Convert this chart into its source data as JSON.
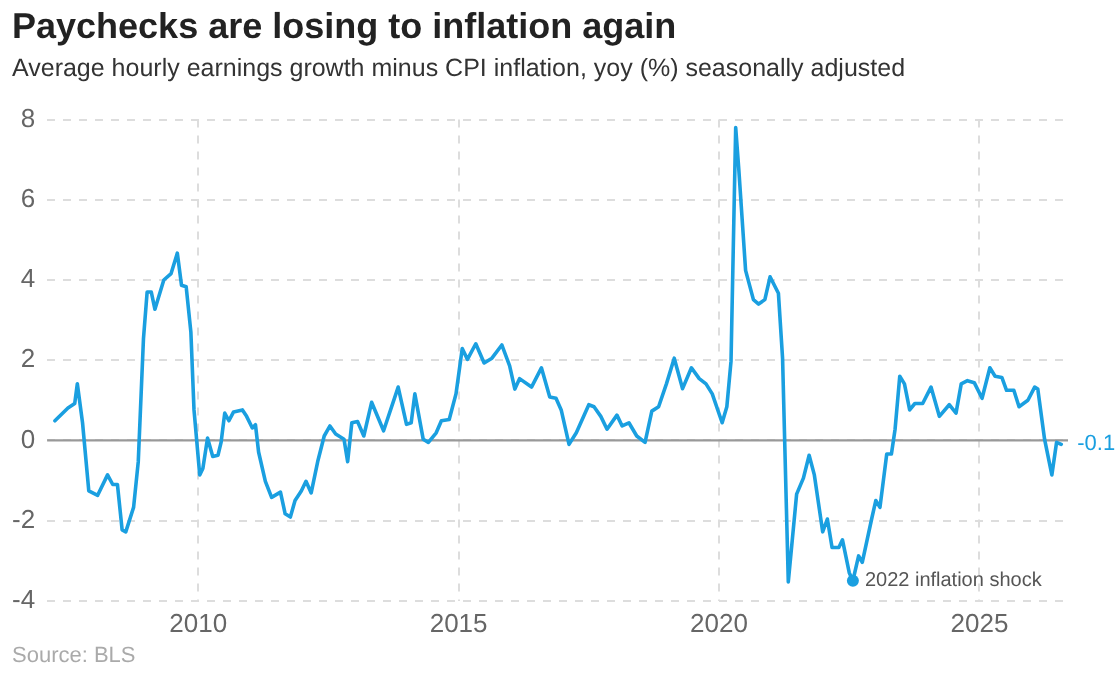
{
  "chart_data": {
    "type": "line",
    "title": "Paychecks are losing to inflation again",
    "subtitle": "Average hourly earnings growth minus CPI inflation, yoy (%) seasonally adjusted",
    "xlim": [
      2007.1,
      2026.7
    ],
    "xticks": [
      2010,
      2015,
      2020,
      2025
    ],
    "ylim": [
      -4,
      8
    ],
    "yticks": [
      -4,
      -2,
      0,
      2,
      4,
      6,
      8
    ],
    "grid": true,
    "legend": false,
    "marker": "none",
    "line_style": "solid",
    "ref_lines": [
      {
        "axis": "y",
        "value": 0,
        "color": "#999999"
      }
    ],
    "annotations": [
      {
        "text": "2022 inflation shock",
        "x": 2022.57,
        "y": -3.5
      },
      {
        "text": "-0.1",
        "x": 2026.57,
        "y": -0.1
      },
      "Source: BLS"
    ],
    "series": [
      {
        "color": "#1a9fe0",
        "x": [
          2007.25,
          2007.5,
          2007.63,
          2007.68,
          2007.78,
          2007.9,
          2008.07,
          2008.26,
          2008.36,
          2008.45,
          2008.54,
          2008.61,
          2008.76,
          2008.85,
          2008.95,
          2009.02,
          2009.1,
          2009.17,
          2009.34,
          2009.48,
          2009.6,
          2009.68,
          2009.77,
          2009.86,
          2009.92,
          2010.03,
          2010.09,
          2010.18,
          2010.28,
          2010.38,
          2010.44,
          2010.51,
          2010.59,
          2010.68,
          2010.85,
          2010.93,
          2011.04,
          2011.1,
          2011.16,
          2011.29,
          2011.41,
          2011.58,
          2011.67,
          2011.77,
          2011.86,
          2011.98,
          2012.07,
          2012.17,
          2012.3,
          2012.42,
          2012.53,
          2012.64,
          2012.8,
          2012.87,
          2012.95,
          2013.06,
          2013.18,
          2013.33,
          2013.56,
          2013.84,
          2014.0,
          2014.09,
          2014.16,
          2014.32,
          2014.42,
          2014.57,
          2014.67,
          2014.82,
          2014.95,
          2015.07,
          2015.17,
          2015.33,
          2015.49,
          2015.64,
          2015.83,
          2015.98,
          2016.08,
          2016.17,
          2016.4,
          2016.59,
          2016.75,
          2016.87,
          2016.97,
          2017.12,
          2017.26,
          2017.5,
          2017.6,
          2017.73,
          2017.85,
          2018.04,
          2018.14,
          2018.27,
          2018.42,
          2018.58,
          2018.71,
          2018.84,
          2018.99,
          2019.14,
          2019.3,
          2019.47,
          2019.62,
          2019.75,
          2019.87,
          2020.06,
          2020.15,
          2020.23,
          2020.32,
          2020.38,
          2020.51,
          2020.66,
          2020.76,
          2020.88,
          2020.98,
          2021.14,
          2021.22,
          2021.33,
          2021.49,
          2021.62,
          2021.73,
          2021.83,
          2021.99,
          2022.08,
          2022.17,
          2022.3,
          2022.37,
          2022.5,
          2022.57,
          2022.68,
          2022.75,
          2022.93,
          2023.01,
          2023.09,
          2023.22,
          2023.31,
          2023.38,
          2023.47,
          2023.56,
          2023.66,
          2023.76,
          2023.91,
          2024.07,
          2024.23,
          2024.42,
          2024.55,
          2024.65,
          2024.77,
          2024.9,
          2025.05,
          2025.2,
          2025.3,
          2025.43,
          2025.52,
          2025.66,
          2025.76,
          2025.93,
          2026.06,
          2026.12,
          2026.25,
          2026.39,
          2026.48,
          2026.57
        ],
        "values": [
          0.49,
          0.81,
          0.92,
          1.41,
          0.44,
          -1.26,
          -1.37,
          -0.86,
          -1.1,
          -1.1,
          -2.23,
          -2.28,
          -1.67,
          -0.53,
          2.54,
          3.7,
          3.7,
          3.27,
          4.0,
          4.16,
          4.67,
          3.87,
          3.83,
          2.7,
          0.76,
          -0.86,
          -0.7,
          0.06,
          -0.4,
          -0.37,
          -0.05,
          0.68,
          0.49,
          0.71,
          0.76,
          0.6,
          0.31,
          0.39,
          -0.29,
          -1.02,
          -1.42,
          -1.29,
          -1.83,
          -1.91,
          -1.5,
          -1.26,
          -1.02,
          -1.31,
          -0.5,
          0.11,
          0.36,
          0.16,
          0.03,
          -0.53,
          0.44,
          0.47,
          0.11,
          0.95,
          0.24,
          1.33,
          0.4,
          0.44,
          1.16,
          0.03,
          -0.05,
          0.19,
          0.49,
          0.52,
          1.16,
          2.29,
          2.02,
          2.41,
          1.93,
          2.05,
          2.38,
          1.86,
          1.28,
          1.54,
          1.33,
          1.81,
          1.08,
          1.05,
          0.76,
          -0.1,
          0.19,
          0.89,
          0.84,
          0.6,
          0.28,
          0.63,
          0.36,
          0.44,
          0.11,
          -0.05,
          0.73,
          0.84,
          1.41,
          2.05,
          1.29,
          1.81,
          1.54,
          1.41,
          1.16,
          0.44,
          0.84,
          1.97,
          7.8,
          6.75,
          4.24,
          3.51,
          3.4,
          3.51,
          4.08,
          3.67,
          2.05,
          -3.53,
          -1.34,
          -0.94,
          -0.37,
          -0.86,
          -2.28,
          -1.96,
          -2.67,
          -2.67,
          -2.48,
          -3.3,
          -3.5,
          -2.88,
          -3.04,
          -1.96,
          -1.5,
          -1.67,
          -0.34,
          -0.34,
          0.28,
          1.6,
          1.41,
          0.76,
          0.92,
          0.92,
          1.33,
          0.6,
          0.89,
          0.68,
          1.41,
          1.49,
          1.44,
          1.05,
          1.81,
          1.6,
          1.57,
          1.25,
          1.25,
          0.84,
          1.0,
          1.33,
          1.28,
          0.03,
          -0.86,
          -0.05,
          -0.1
        ]
      }
    ]
  }
}
